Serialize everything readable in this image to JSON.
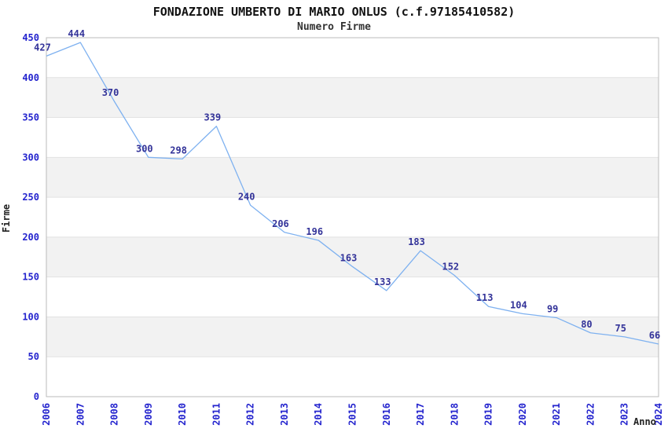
{
  "page": {
    "background": "#FFFFFF"
  },
  "chart_data": {
    "type": "line",
    "title": "FONDAZIONE UMBERTO DI MARIO ONLUS (c.f.97185410582)",
    "subtitle": "Numero Firme",
    "xlabel": "Anno",
    "ylabel": "Firme",
    "categories": [
      "2006",
      "2007",
      "2008",
      "2009",
      "2010",
      "2011",
      "2012",
      "2013",
      "2014",
      "2015",
      "2016",
      "2017",
      "2018",
      "2019",
      "2020",
      "2021",
      "2022",
      "2023",
      "2024"
    ],
    "values": [
      427,
      444,
      370,
      300,
      298,
      339,
      240,
      206,
      196,
      163,
      133,
      183,
      152,
      113,
      104,
      99,
      80,
      75,
      66
    ],
    "ylim": [
      0,
      450
    ],
    "ytick_step": 50,
    "grid": true,
    "legend": "none",
    "band_style": "alternating-horizontal",
    "colors": {
      "line": "#7EB1F0",
      "data_label": "#333399",
      "tick_label": "#2424CE",
      "band": "#F2F2F2",
      "grid": "#E2E2E2",
      "border": "#BBBBBB",
      "title": "#111111",
      "subtitle": "#333333",
      "axis_label": "#222222"
    }
  }
}
